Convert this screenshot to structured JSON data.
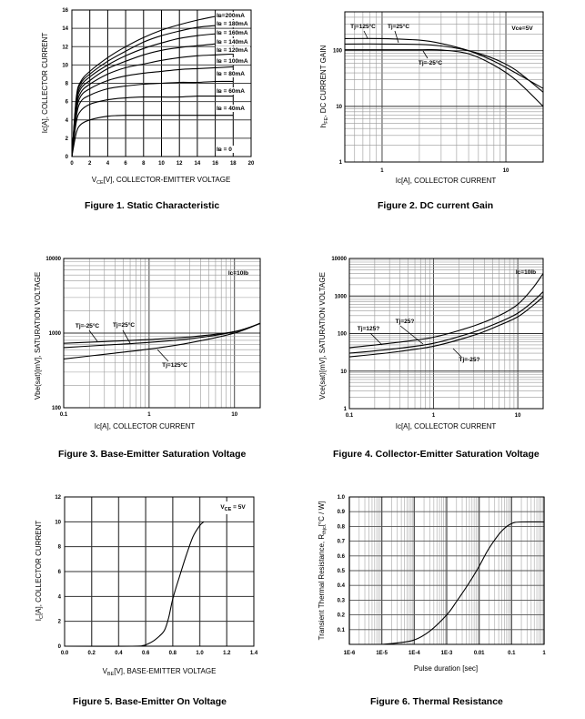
{
  "chart_data": [
    {
      "id": "fig1",
      "type": "line",
      "title": "Figure 1. Static Characteristic",
      "xlabel_main": "V",
      "xlabel_sub": "CE",
      "xlabel_rest": "[V], COLLECTOR-EMITTER VOLTAGE",
      "ylabel": "Iс[A], COLLECTOR CURRENT",
      "xlim": [
        0,
        20
      ],
      "ylim": [
        0,
        16
      ],
      "x_ticks": [
        "0",
        "2",
        "4",
        "6",
        "8",
        "10",
        "12",
        "14",
        "16",
        "18",
        "20"
      ],
      "y_ticks": [
        "0",
        "2",
        "4",
        "6",
        "8",
        "10",
        "12",
        "14",
        "16"
      ],
      "grid": true,
      "series": [
        {
          "name": "IB=200mA",
          "label": "Iʙ=200mA",
          "x": [
            0,
            0.5,
            1,
            2,
            4,
            6,
            8,
            10,
            12,
            14,
            16
          ],
          "y": [
            0,
            6.5,
            8.2,
            9.3,
            10.8,
            12.0,
            13.0,
            13.8,
            14.4,
            14.9,
            15.3
          ]
        },
        {
          "name": "IB=180mA",
          "label": "Iʙ = 180mA",
          "x": [
            0,
            0.5,
            1,
            2,
            4,
            6,
            8,
            10,
            12,
            14,
            16
          ],
          "y": [
            0,
            6.3,
            8.0,
            9.0,
            10.4,
            11.5,
            12.5,
            13.2,
            13.7,
            14.1,
            14.3
          ]
        },
        {
          "name": "IB=160mA",
          "label": "Iʙ = 160mA",
          "x": [
            0,
            0.5,
            1,
            2,
            4,
            6,
            8,
            10,
            12,
            14,
            16
          ],
          "y": [
            0,
            6.0,
            7.7,
            8.7,
            10.0,
            11.0,
            11.8,
            12.4,
            12.9,
            13.2,
            13.4
          ]
        },
        {
          "name": "IB=140mA",
          "label": "Iʙ = 140mA",
          "x": [
            0,
            0.5,
            1,
            2,
            4,
            6,
            8,
            10,
            12,
            14,
            16
          ],
          "y": [
            0,
            5.7,
            7.4,
            8.3,
            9.6,
            10.4,
            11.1,
            11.6,
            11.9,
            12.1,
            12.3
          ]
        },
        {
          "name": "IB=120mA",
          "label": "Iʙ = 120mA",
          "x": [
            0,
            0.5,
            1,
            2,
            4,
            6,
            8,
            10,
            12,
            14,
            16,
            18
          ],
          "y": [
            0,
            5.3,
            7.0,
            7.9,
            9.0,
            9.7,
            10.1,
            10.5,
            10.8,
            11.0,
            11.1,
            11.2
          ]
        },
        {
          "name": "IB=100mA",
          "label": "Iʙ = 100mA",
          "x": [
            0,
            0.5,
            1,
            2,
            4,
            6,
            8,
            10,
            12,
            14,
            16,
            18
          ],
          "y": [
            0,
            4.9,
            6.6,
            7.4,
            8.3,
            8.8,
            9.1,
            9.3,
            9.5,
            9.6,
            9.7,
            9.8
          ]
        },
        {
          "name": "IB=80mA",
          "label": "Iʙ = 80mA",
          "x": [
            0,
            0.5,
            1,
            2,
            4,
            6,
            8,
            10,
            12,
            14,
            16,
            18
          ],
          "y": [
            0,
            4.4,
            6.0,
            6.7,
            7.4,
            7.7,
            7.9,
            8.0,
            8.1,
            8.1,
            8.2,
            8.2
          ]
        },
        {
          "name": "IB=60mA",
          "label": "Iʙ = 60mA",
          "x": [
            0,
            0.5,
            1,
            2,
            4,
            6,
            8,
            10,
            12,
            14,
            16,
            18
          ],
          "y": [
            0,
            3.8,
            5.0,
            5.7,
            6.2,
            6.4,
            6.5,
            6.5,
            6.5,
            6.6,
            6.6,
            6.6
          ]
        },
        {
          "name": "IB=40mA",
          "label": "Iʙ = 40mA",
          "x": [
            0,
            0.5,
            1,
            2,
            4,
            6,
            8,
            10,
            12,
            14,
            16,
            18
          ],
          "y": [
            0,
            2.6,
            3.5,
            4.0,
            4.4,
            4.5,
            4.5,
            4.5,
            4.5,
            4.5,
            4.5,
            4.5
          ]
        },
        {
          "name": "IB=0",
          "label": "Iʙ = 0",
          "x": [
            0,
            18
          ],
          "y": [
            0,
            0
          ]
        }
      ]
    },
    {
      "id": "fig2",
      "type": "line",
      "title": "Figure 2. DC current Gain",
      "xlabel": "Ic[A], COLLECTOR CURRENT",
      "ylabel_main": "h",
      "ylabel_sub": "FE",
      "ylabel_rest": ", DC CURRENT GAIN",
      "xscale": "log",
      "yscale": "log",
      "xlim": [
        0.5,
        20
      ],
      "ylim": [
        1,
        500
      ],
      "x_ticks": [
        "1",
        "10"
      ],
      "y_ticks": [
        "1",
        "10",
        "100"
      ],
      "annotation": "Vce=5V",
      "grid": true,
      "series": [
        {
          "name": "Tj=125°C",
          "label": "Tj=125°C",
          "x": [
            0.5,
            1,
            2,
            3,
            5,
            8,
            12,
            20
          ],
          "y": [
            165,
            165,
            155,
            135,
            100,
            65,
            40,
            21
          ]
        },
        {
          "name": "Tj=25°C",
          "label": "Tj=25°C",
          "x": [
            0.5,
            1,
            2,
            3,
            5,
            8,
            12,
            20
          ],
          "y": [
            132,
            132,
            130,
            122,
            100,
            72,
            45,
            18
          ]
        },
        {
          "name": "Tj=-25°C",
          "label": "Tj=-25°C",
          "x": [
            0.5,
            1,
            2,
            3,
            5,
            8,
            12,
            20
          ],
          "y": [
            104,
            104,
            104,
            103,
            88,
            55,
            30,
            10
          ]
        }
      ]
    },
    {
      "id": "fig3",
      "type": "line",
      "title": "Figure 3. Base-Emitter Saturation Voltage",
      "xlabel": "Ic[A], COLLECTOR CURRENT",
      "ylabel": "Vbe(sat)[mV], SATURATION VOLTAGE",
      "xscale": "log",
      "yscale": "log",
      "xlim": [
        0.1,
        20
      ],
      "ylim": [
        100,
        10000
      ],
      "x_ticks": [
        "0.1",
        "1",
        "10"
      ],
      "y_ticks": [
        "100",
        "1000",
        "10000"
      ],
      "annotation": "Ic=10Ib",
      "grid": true,
      "series": [
        {
          "name": "Tj=-25°C",
          "label": "Tj=-25°C",
          "x": [
            0.1,
            0.3,
            1,
            3,
            10,
            20
          ],
          "y": [
            730,
            770,
            820,
            890,
            1050,
            1350
          ]
        },
        {
          "name": "Tj=25°C",
          "label": "Tj=25°C",
          "x": [
            0.1,
            0.3,
            1,
            3,
            10,
            20
          ],
          "y": [
            640,
            690,
            750,
            840,
            1040,
            1350
          ]
        },
        {
          "name": "Tj=125°C",
          "label": "Tj=125°C",
          "x": [
            0.1,
            0.3,
            1,
            3,
            10,
            20
          ],
          "y": [
            450,
            520,
            610,
            740,
            1000,
            1350
          ]
        }
      ]
    },
    {
      "id": "fig4",
      "type": "line",
      "title": "Figure 4. Collector-Emitter Saturation Voltage",
      "xlabel": "Ic[A], COLLECTOR CURRENT",
      "ylabel": "Vce(sat)[mV], SATURATION VOLTAGE",
      "xscale": "log",
      "yscale": "log",
      "xlim": [
        0.1,
        20
      ],
      "ylim": [
        1,
        10000
      ],
      "x_ticks": [
        "0.1",
        "1",
        "10"
      ],
      "y_ticks": [
        "1",
        "10",
        "100",
        "1000",
        "10000"
      ],
      "annotation": "Ic=10Ib",
      "grid": true,
      "series": [
        {
          "name": "Tj=125?",
          "label": "Tj=125?",
          "x": [
            0.1,
            0.3,
            1,
            3,
            6,
            10,
            15,
            20
          ],
          "y": [
            42,
            55,
            80,
            160,
            300,
            600,
            1600,
            4000
          ]
        },
        {
          "name": "Tj=25?",
          "label": "Tj=25?",
          "x": [
            0.1,
            0.3,
            1,
            3,
            6,
            10,
            15,
            20
          ],
          "y": [
            30,
            38,
            55,
            110,
            200,
            350,
            700,
            1300
          ]
        },
        {
          "name": "Tj=-25?",
          "label": "Tj=-25?",
          "x": [
            0.1,
            0.3,
            1,
            3,
            6,
            10,
            15,
            20
          ],
          "y": [
            24,
            31,
            46,
            90,
            165,
            280,
            550,
            950
          ]
        }
      ]
    },
    {
      "id": "fig5",
      "type": "line",
      "title": "Figure 5. Base-Emitter On Voltage",
      "xlabel_main": "V",
      "xlabel_sub": "BE",
      "xlabel_rest": "[V], BASE-EMITTER VOLTAGE",
      "ylabel_main": "I",
      "ylabel_sub": "C",
      "ylabel_rest": "[A], COLLECTOR CURRENT",
      "xlim": [
        0,
        1.4
      ],
      "ylim": [
        0,
        12
      ],
      "x_ticks": [
        "0.0",
        "0.2",
        "0.4",
        "0.6",
        "0.8",
        "1.0",
        "1.2",
        "1.4"
      ],
      "y_ticks": [
        "0",
        "2",
        "4",
        "6",
        "8",
        "10",
        "12"
      ],
      "annotation_main": "V",
      "annotation_sub": "CE",
      "annotation_rest": " = 5V",
      "grid": true,
      "series": [
        {
          "name": "VCE=5V",
          "x": [
            0,
            0.5,
            0.58,
            0.62,
            0.66,
            0.7,
            0.74,
            0.77,
            0.8,
            0.85,
            0.9,
            0.95,
            1.0,
            1.03
          ],
          "y": [
            0,
            0,
            0.05,
            0.2,
            0.45,
            0.8,
            1.3,
            2.3,
            3.8,
            5.6,
            7.3,
            8.8,
            9.7,
            10
          ]
        }
      ]
    },
    {
      "id": "fig6",
      "type": "line",
      "title": "Figure 6. Thermal Resistance",
      "xlabel": "Pulse duration [sec]",
      "ylabel_main": "Transient Thermal Resistance, R",
      "ylabel_sub": "thjc",
      "ylabel_rest": "[°C / W]",
      "xscale": "log",
      "xlim": [
        1e-06,
        1
      ],
      "ylim": [
        0,
        1.0
      ],
      "x_ticks": [
        "1E-6",
        "1E-5",
        "1E-4",
        "1E-3",
        "0.01",
        "0.1",
        "1"
      ],
      "y_ticks": [
        "0.1",
        "0.2",
        "0.3",
        "0.4",
        "0.5",
        "0.6",
        "0.7",
        "0.8",
        "0.9",
        "1.0"
      ],
      "grid": true,
      "series": [
        {
          "name": "Rthjc",
          "x": [
            1e-05,
            3e-05,
            0.0001,
            0.0003,
            0.001,
            0.002,
            0.005,
            0.01,
            0.02,
            0.05,
            0.1,
            0.2,
            1
          ],
          "y": [
            0.0,
            0.01,
            0.03,
            0.09,
            0.2,
            0.29,
            0.42,
            0.53,
            0.65,
            0.77,
            0.82,
            0.83,
            0.83
          ]
        }
      ]
    }
  ]
}
